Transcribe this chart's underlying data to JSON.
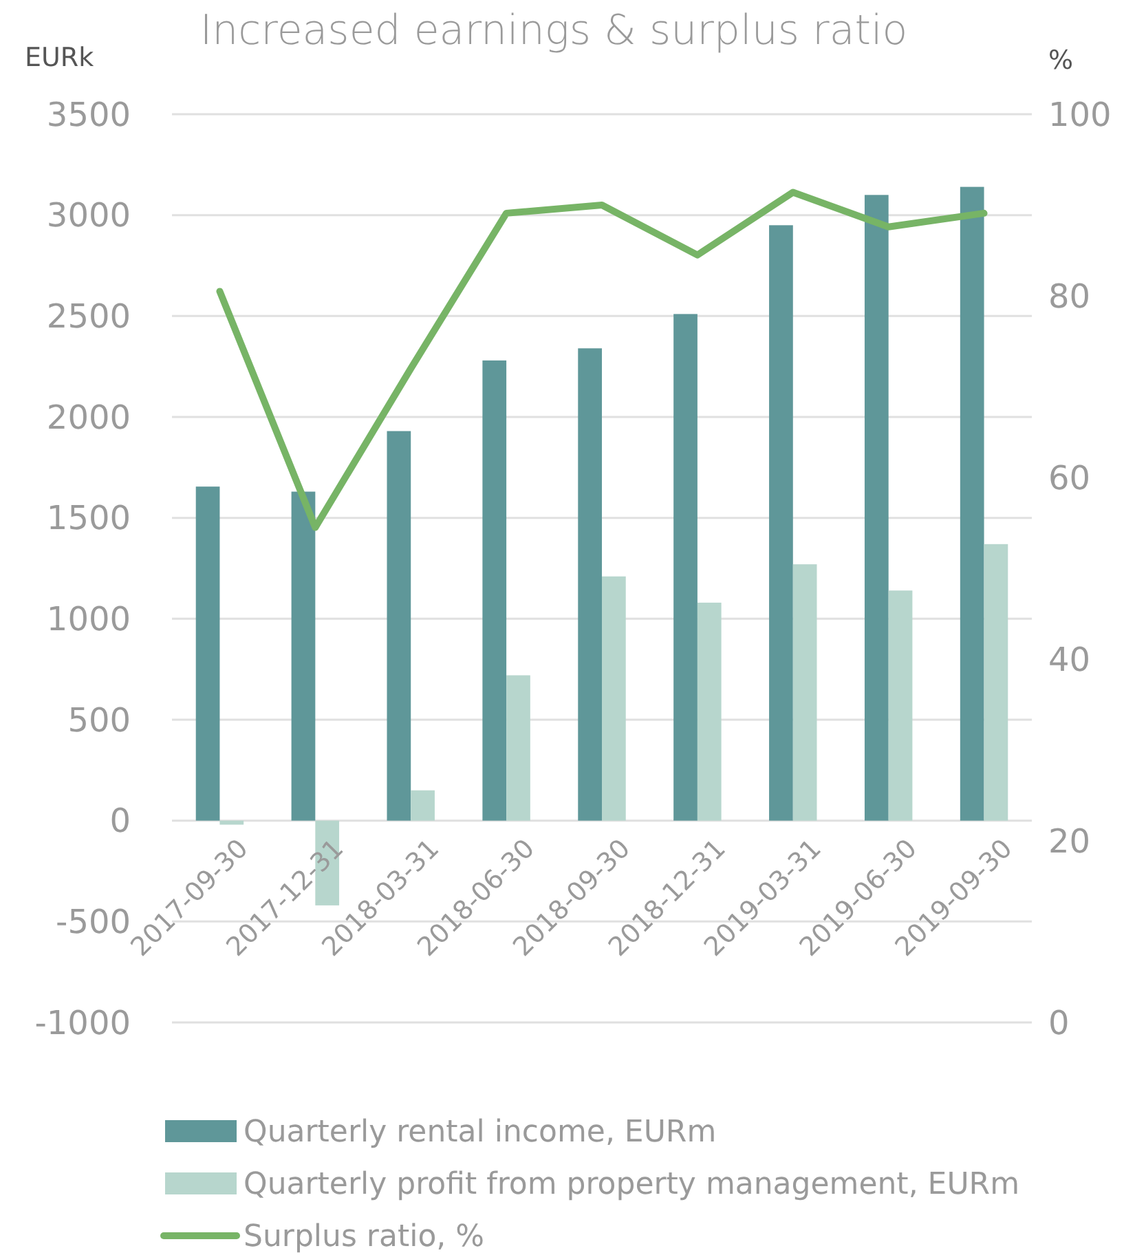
{
  "chart_data": {
    "type": "bar",
    "title": "Increased earnings & surplus ratio",
    "ylabel": "EURk",
    "y2label": "%",
    "categories": [
      "2017-09-30",
      "2017-12-31",
      "2018-03-31",
      "2018-06-30",
      "2018-09-30",
      "2018-12-31",
      "2019-03-31",
      "2019-06-30",
      "2019-09-30"
    ],
    "series": [
      {
        "name": "Quarterly rental income, EURm",
        "color": "#5f9799",
        "values": [
          1655,
          1630,
          1930,
          2280,
          2340,
          2510,
          2950,
          3100,
          3140
        ]
      },
      {
        "name": "Quarterly profit from property management, EURm",
        "color": "#b7d6cd",
        "values": [
          -20,
          -420,
          150,
          720,
          1210,
          1080,
          1270,
          1140,
          1370
        ]
      },
      {
        "name": "Surplus ratio, %",
        "color": "#77b466",
        "type": "line",
        "axis": "y2",
        "values": [
          80.5,
          54.5,
          72,
          89.1,
          90,
          84.5,
          91.4,
          87.6,
          89.1
        ]
      }
    ],
    "ylim": [
      -1000,
      3500
    ],
    "yticks": [
      -1000,
      -500,
      0,
      500,
      1000,
      1500,
      2000,
      2500,
      3000,
      3500
    ],
    "y2lim": [
      0,
      100
    ],
    "y2ticks": [
      0,
      20,
      40,
      60,
      80,
      100
    ],
    "grid": "y",
    "legend": "bottom",
    "line_style": "solid",
    "marker": "none"
  }
}
